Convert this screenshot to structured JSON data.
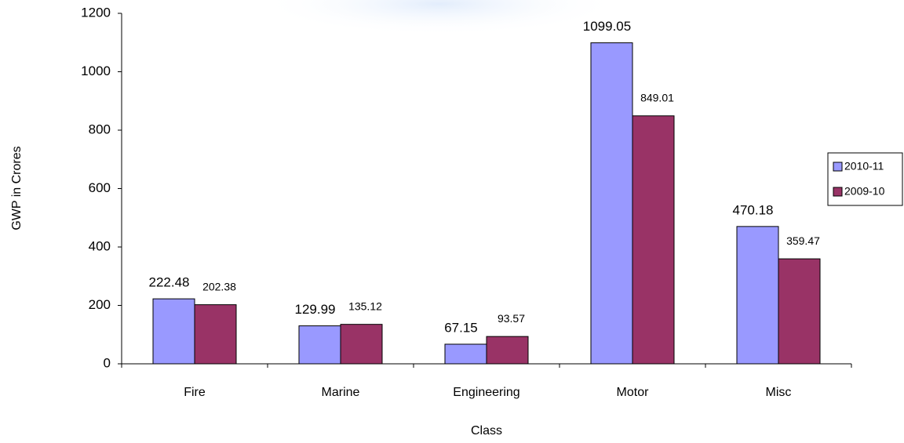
{
  "chart_data": {
    "type": "bar",
    "x_label": "Class",
    "y_label": "GWP in Crores",
    "categories": [
      "Fire",
      "Marine",
      "Engineering",
      "Motor",
      "Misc"
    ],
    "series": [
      {
        "name": "2010-11",
        "color": "#9999ff",
        "values": [
          222.48,
          129.99,
          67.15,
          1099.05,
          470.18
        ]
      },
      {
        "name": "2009-10",
        "color": "#993366",
        "values": [
          202.38,
          135.12,
          93.57,
          849.01,
          359.47
        ]
      }
    ],
    "ylim": [
      0,
      1200
    ],
    "yticks": [
      0,
      200,
      400,
      600,
      800,
      1000,
      1200
    ],
    "grid": false,
    "legend": "right"
  }
}
